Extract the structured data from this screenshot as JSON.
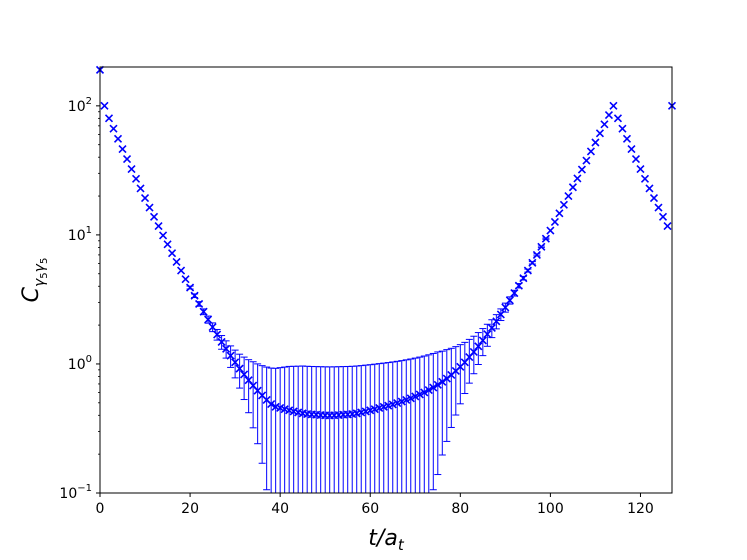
{
  "chart_data": {
    "type": "scatter",
    "xlabel": "t/a_t",
    "ylabel": "C_{γ5γ5}",
    "xlim": [
      0,
      127
    ],
    "ylim": [
      0.1,
      200
    ],
    "yscale": "log",
    "grid": false,
    "legend": "none",
    "color": "#0000ff",
    "marker": "x",
    "x_ticks": [
      0,
      20,
      40,
      60,
      80,
      100,
      120
    ],
    "y_ticks": [
      {
        "value": 0.1,
        "base": "10",
        "exp": "−1"
      },
      {
        "value": 1,
        "base": "10",
        "exp": "0"
      },
      {
        "value": 10,
        "base": "10",
        "exp": "1"
      },
      {
        "value": 100,
        "base": "10",
        "exp": "2"
      }
    ],
    "series": [
      {
        "x": [
          0,
          1,
          2,
          3,
          4,
          5,
          6,
          7,
          8,
          9,
          10,
          11,
          12,
          13,
          14,
          15,
          16,
          17,
          18,
          19,
          20,
          21,
          22,
          23,
          24,
          25,
          26,
          27,
          28,
          29,
          30,
          31,
          32,
          33,
          34,
          35,
          36,
          37,
          38,
          39,
          40,
          41,
          42,
          43,
          44,
          45,
          46,
          47,
          48,
          49,
          50,
          51,
          52,
          53,
          54,
          55,
          56,
          57,
          58,
          59,
          60,
          61,
          62,
          63,
          64,
          65,
          66,
          67,
          68,
          69,
          70,
          71,
          72,
          73,
          74,
          75,
          76,
          77,
          78,
          79,
          80,
          81,
          82,
          83,
          84,
          85,
          86,
          87,
          88,
          89,
          90,
          91,
          92,
          93,
          94,
          95,
          96,
          97,
          98,
          99,
          100,
          101,
          102,
          103,
          104,
          105,
          106,
          107,
          108,
          109,
          110,
          111,
          112,
          113,
          114,
          115,
          116,
          117,
          118,
          119,
          120,
          121,
          122,
          123,
          124,
          125,
          126,
          127
        ],
        "y": [
          190.0,
          100.0,
          80.0,
          66.6,
          55.5,
          46.3,
          38.7,
          32.4,
          27.2,
          22.9,
          19.3,
          16.3,
          13.8,
          11.7,
          9.9,
          8.45,
          7.21,
          6.17,
          5.29,
          4.54,
          3.91,
          3.38,
          2.92,
          2.54,
          2.21,
          1.93,
          1.69,
          1.48,
          1.31,
          1.16,
          1.03,
          0.92,
          0.83,
          0.749,
          0.68,
          0.621,
          0.57,
          0.526,
          0.489,
          0.465,
          0.456,
          0.446,
          0.437,
          0.429,
          0.421,
          0.414,
          0.409,
          0.406,
          0.404,
          0.402,
          0.4,
          0.399,
          0.4,
          0.402,
          0.404,
          0.406,
          0.409,
          0.414,
          0.421,
          0.429,
          0.437,
          0.446,
          0.456,
          0.465,
          0.475,
          0.486,
          0.498,
          0.511,
          0.526,
          0.542,
          0.56,
          0.58,
          0.602,
          0.627,
          0.656,
          0.689,
          0.727,
          0.771,
          0.822,
          0.882,
          0.951,
          1.03,
          1.13,
          1.24,
          1.37,
          1.52,
          1.7,
          1.9,
          2.14,
          2.42,
          2.74,
          3.11,
          3.54,
          4.04,
          4.62,
          5.29,
          6.08,
          7.0,
          8.08,
          9.35,
          10.8,
          12.6,
          14.7,
          17.1,
          20.0,
          23.4,
          27.4,
          32.1,
          37.7,
          44.3,
          52.0,
          61.2,
          72.0,
          84.8,
          100.0,
          80.0,
          66.6,
          55.5,
          46.3,
          38.7,
          32.4,
          27.2,
          22.9,
          19.3,
          16.3,
          13.8,
          11.7,
          100.0
        ],
        "err_plus": [
          0,
          0,
          0,
          0,
          0,
          0,
          0,
          0,
          0,
          0,
          0,
          0,
          0,
          0,
          0,
          0,
          0,
          0,
          0,
          0,
          0.1,
          0.11,
          0.12,
          0.13,
          0.14,
          0.15,
          0.16,
          0.18,
          0.2,
          0.22,
          0.25,
          0.27,
          0.3,
          0.33,
          0.36,
          0.38,
          0.4,
          0.42,
          0.44,
          0.46,
          0.48,
          0.5,
          0.52,
          0.53,
          0.54,
          0.55,
          0.55,
          0.55,
          0.55,
          0.55,
          0.55,
          0.55,
          0.55,
          0.55,
          0.55,
          0.55,
          0.55,
          0.55,
          0.55,
          0.55,
          0.55,
          0.55,
          0.55,
          0.55,
          0.55,
          0.55,
          0.55,
          0.55,
          0.55,
          0.55,
          0.55,
          0.55,
          0.55,
          0.55,
          0.55,
          0.55,
          0.53,
          0.52,
          0.5,
          0.48,
          0.46,
          0.44,
          0.42,
          0.4,
          0.38,
          0.36,
          0.33,
          0.3,
          0.27,
          0.25,
          0.22,
          0.2,
          0.18,
          0.16,
          0.15,
          0.14,
          0.13,
          0.12,
          0.11,
          0.1,
          0,
          0,
          0,
          0,
          0,
          0,
          0,
          0,
          0,
          0,
          0,
          0,
          0,
          0,
          0,
          0,
          0,
          0,
          0,
          0,
          0,
          0,
          0,
          0,
          0,
          0,
          0,
          0
        ]
      }
    ]
  }
}
